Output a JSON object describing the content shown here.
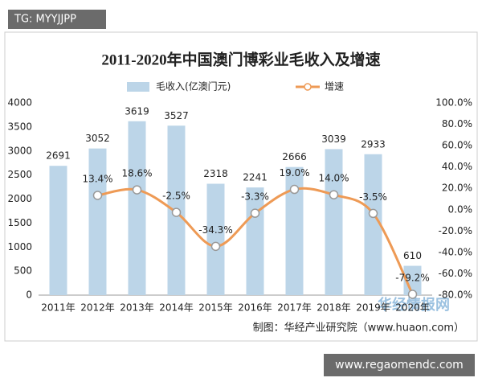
{
  "chart_data": {
    "type": "bar-line",
    "title": "2011-2020年中国澳门博彩业毛收入及增速",
    "categories": [
      "2011年",
      "2012年",
      "2013年",
      "2014年",
      "2015年",
      "2016年",
      "2017年",
      "2018年",
      "2019年",
      "2020年"
    ],
    "series": [
      {
        "name": "毛收入(亿澳门元)",
        "type": "bar",
        "color": "#bcd5e8",
        "values": [
          2691,
          3052,
          3619,
          3527,
          2318,
          2241,
          2666,
          3039,
          2933,
          610
        ]
      },
      {
        "name": "增速",
        "type": "line",
        "axis": "y2",
        "color": "#ee9a55",
        "values": [
          null,
          13.4,
          18.6,
          -2.5,
          -34.3,
          -3.3,
          19.0,
          14.0,
          -3.5,
          -79.2
        ],
        "value_labels": [
          null,
          "13.4%",
          "18.6%",
          "-2.5%",
          "-34.3%",
          "-3.3%",
          "19.0%",
          "14.0%",
          "-3.5%",
          "-79.2%"
        ]
      }
    ],
    "ylim": [
      0,
      4000
    ],
    "yticks": [
      0,
      500,
      1000,
      1500,
      2000,
      2500,
      3000,
      3500,
      4000
    ],
    "y2lim": [
      -80,
      100
    ],
    "y2ticks": [
      {
        "value": -80,
        "label": "-80.0%"
      },
      {
        "value": -60,
        "label": "-60.0%"
      },
      {
        "value": -40,
        "label": "-40.0%"
      },
      {
        "value": -20,
        "label": "-20.0%"
      },
      {
        "value": 0,
        "label": "0.0%"
      },
      {
        "value": 20,
        "label": "20.0%"
      },
      {
        "value": 40,
        "label": "40.0%"
      },
      {
        "value": 60,
        "label": "60.0%"
      },
      {
        "value": 80,
        "label": "80.0%"
      },
      {
        "value": 100,
        "label": "100.0%"
      }
    ],
    "legend": "top",
    "source": "制图：华经产业研究院（www.huaon.com）"
  },
  "watermarks": {
    "top": "TG: MYYJJPP",
    "logo": "华经情报网",
    "bottom": "www.regaomendc.com"
  }
}
